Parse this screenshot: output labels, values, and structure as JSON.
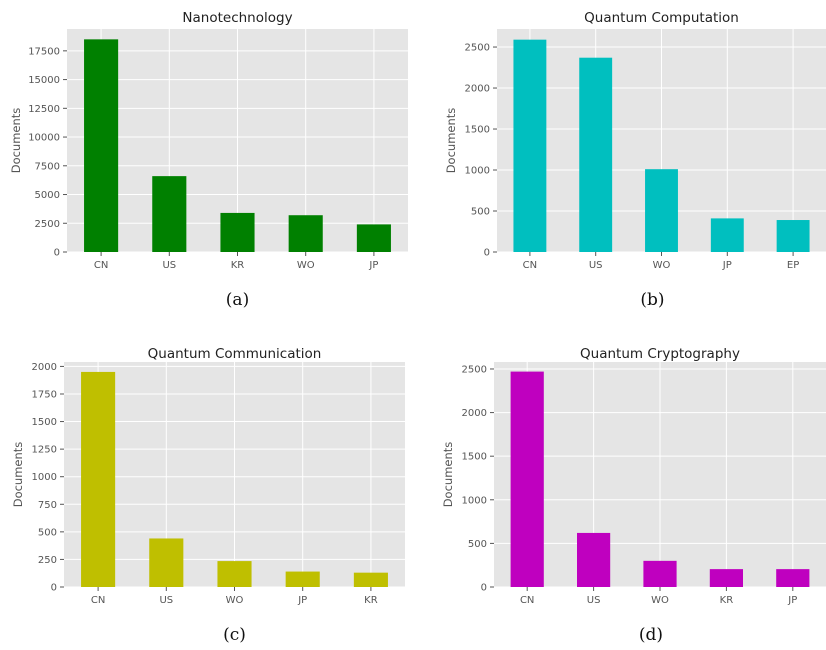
{
  "chart_data": [
    {
      "type": "bar",
      "title": "Nanotechnology",
      "caption": "(a)",
      "ylabel": "Documents",
      "xlabel": "",
      "categories": [
        "CN",
        "US",
        "KR",
        "WO",
        "JP"
      ],
      "values": [
        18500,
        6600,
        3400,
        3200,
        2400
      ],
      "ylim": [
        0,
        19400
      ],
      "yticks": [
        0,
        2500,
        5000,
        7500,
        10000,
        12500,
        15000,
        17500
      ],
      "color": "#008000",
      "grid": true,
      "background": "#e5e5e5"
    },
    {
      "type": "bar",
      "title": "Quantum Computation",
      "caption": "(b)",
      "ylabel": "Documents",
      "xlabel": "",
      "categories": [
        "CN",
        "US",
        "WO",
        "JP",
        "EP"
      ],
      "values": [
        2590,
        2370,
        1010,
        410,
        390
      ],
      "ylim": [
        0,
        2720
      ],
      "yticks": [
        0,
        500,
        1000,
        1500,
        2000,
        2500
      ],
      "color": "#00bfbf",
      "grid": true,
      "background": "#e5e5e5"
    },
    {
      "type": "bar",
      "title": "Quantum Communication",
      "caption": "(c)",
      "ylabel": "Documents",
      "xlabel": "",
      "categories": [
        "CN",
        "US",
        "WO",
        "JP",
        "KR"
      ],
      "values": [
        1950,
        440,
        235,
        140,
        130
      ],
      "ylim": [
        0,
        2040
      ],
      "yticks": [
        0,
        250,
        500,
        750,
        1000,
        1250,
        1500,
        1750,
        2000
      ],
      "color": "#bfbf00",
      "grid": true,
      "background": "#e5e5e5"
    },
    {
      "type": "bar",
      "title": "Quantum Cryptography",
      "caption": "(d)",
      "ylabel": "Documents",
      "xlabel": "",
      "categories": [
        "CN",
        "US",
        "WO",
        "KR",
        "JP"
      ],
      "values": [
        2470,
        620,
        300,
        205,
        205
      ],
      "ylim": [
        0,
        2580
      ],
      "yticks": [
        0,
        500,
        1000,
        1500,
        2000,
        2500
      ],
      "color": "#bf00bf",
      "grid": true,
      "background": "#e5e5e5"
    }
  ]
}
